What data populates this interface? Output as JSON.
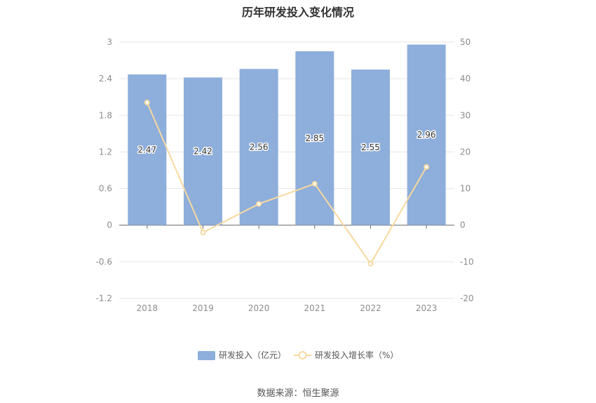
{
  "chart_data": {
    "type": "bar+line",
    "title": "历年研发投入变化情况",
    "categories": [
      "2018",
      "2019",
      "2020",
      "2021",
      "2022",
      "2023"
    ],
    "series": [
      {
        "name": "研发投入（亿元）",
        "type": "bar",
        "axis": "left",
        "values": [
          2.47,
          2.42,
          2.56,
          2.85,
          2.55,
          2.96
        ],
        "color": "#8eaedb"
      },
      {
        "name": "研发投入增长率（%）",
        "type": "line",
        "axis": "right",
        "values": [
          33.5,
          -2.0,
          5.8,
          11.3,
          -10.5,
          15.9
        ],
        "color": "#f8d9a0"
      }
    ],
    "y_left": {
      "min": -1.2,
      "max": 3,
      "ticks": [
        "3",
        "2.4",
        "1.8",
        "1.2",
        "0.6",
        "0",
        "-0.6",
        "-1.2"
      ]
    },
    "y_right": {
      "min": -20,
      "max": 50,
      "ticks": [
        "50",
        "40",
        "30",
        "20",
        "10",
        "0",
        "-10",
        "-20"
      ]
    },
    "legend_position": "bottom-center",
    "grid": true
  },
  "source_text": "数据来源：恒生聚源"
}
